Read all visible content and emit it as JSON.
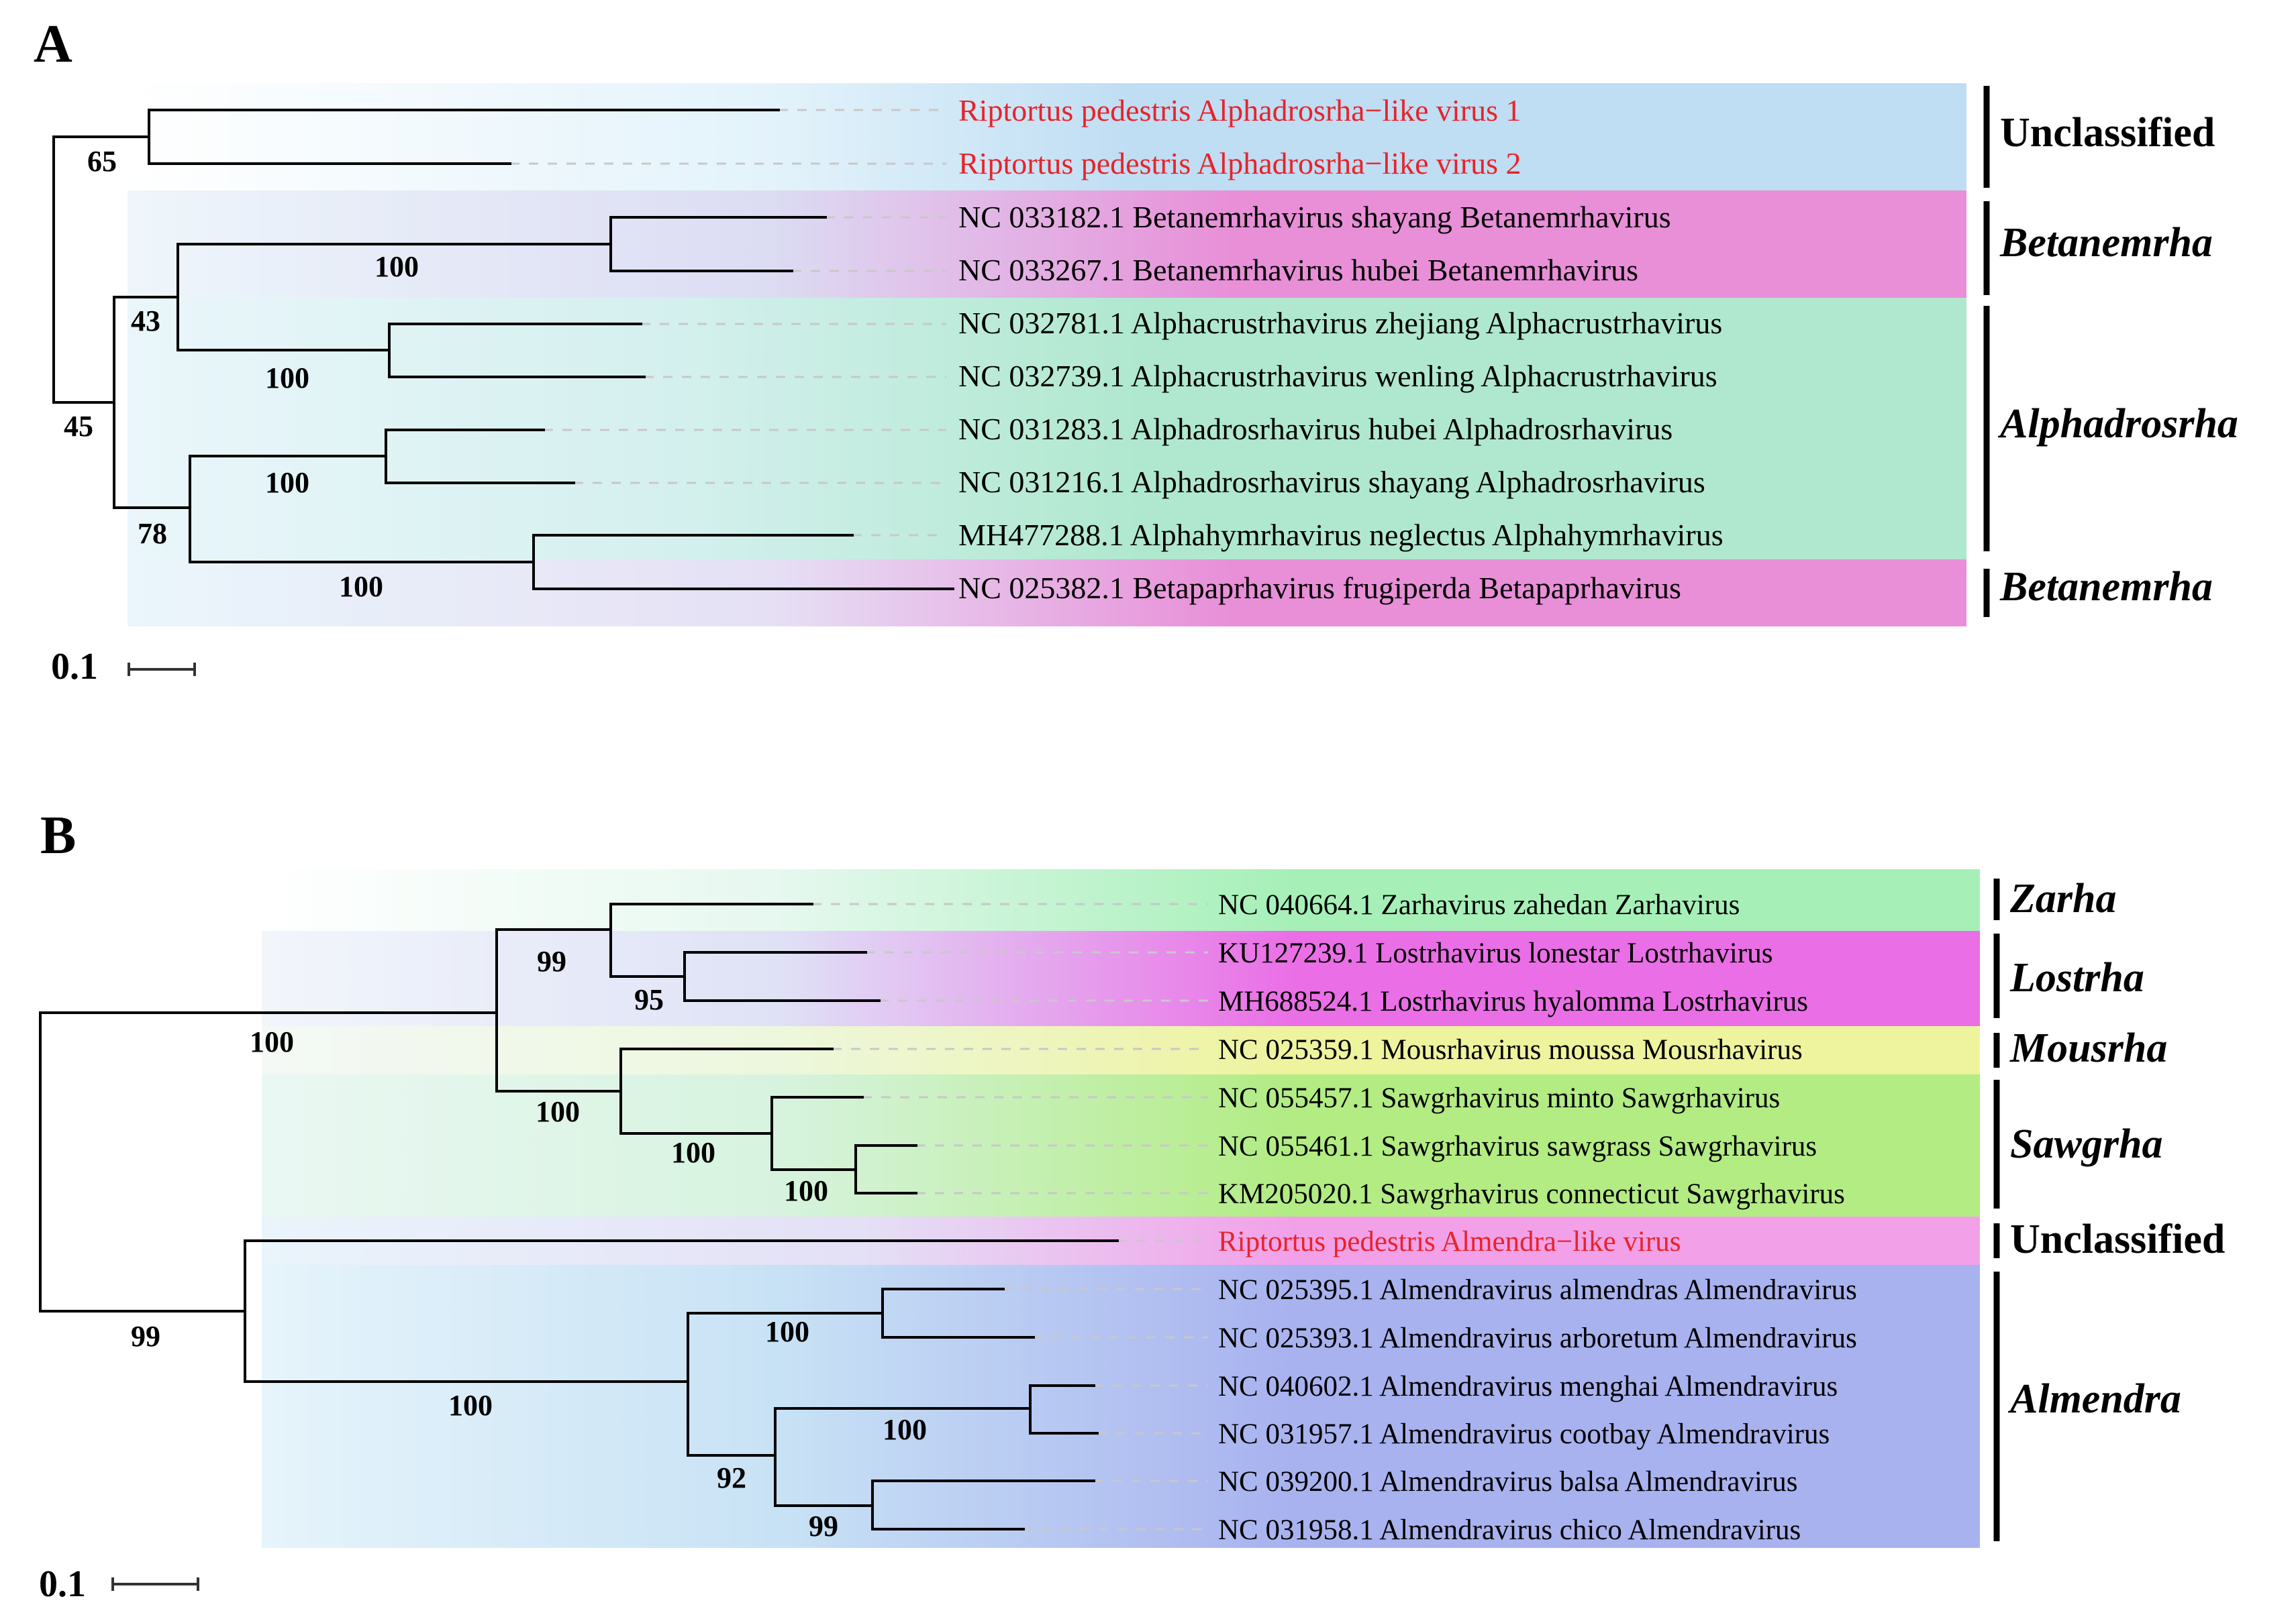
{
  "panel_a": {
    "letter": "A",
    "tips": [
      "Riptortus pedestris Alphadrosrha−like virus 1",
      "Riptortus pedestris Alphadrosrha−like virus 2",
      "NC 033182.1 Betanemrhavirus shayang Betanemrhavirus",
      "NC 033267.1 Betanemrhavirus hubei Betanemrhavirus",
      "NC 032781.1 Alphacrustrhavirus zhejiang Alphacrustrhavirus",
      "NC 032739.1 Alphacrustrhavirus wenling Alphacrustrhavirus",
      "NC 031283.1 Alphadrosrhavirus hubei Alphadrosrhavirus",
      "NC 031216.1 Alphadrosrhavirus shayang Alphadrosrhavirus",
      "MH477288.1 Alphahymrhavirus neglectus Alphahymrhavirus",
      "NC 025382.1 Betapaprhavirus frugiperda Betapaprhavirus"
    ],
    "bootstraps": [
      "65",
      "100",
      "43",
      "100",
      "45",
      "100",
      "78",
      "100"
    ],
    "clades": [
      "Unclassified",
      "Betanemrha",
      "Alphadrosrha",
      "Betanemrha"
    ],
    "scale": "0.1",
    "colors": {
      "unclassified": "#bfddf3",
      "betanemrha": "#e88fd8",
      "alphadrosrha": "#b0e8cf",
      "highlight": "#e8232a"
    }
  },
  "panel_b": {
    "letter": "B",
    "tips": [
      "NC 040664.1 Zarhavirus zahedan Zarhavirus",
      "KU127239.1 Lostrhavirus lonestar Lostrhavirus",
      "MH688524.1 Lostrhavirus hyalomma Lostrhavirus",
      "NC 025359.1 Mousrhavirus moussa Mousrhavirus",
      "NC 055457.1 Sawgrhavirus minto Sawgrhavirus",
      "NC 055461.1 Sawgrhavirus sawgrass Sawgrhavirus",
      "KM205020.1 Sawgrhavirus connecticut Sawgrhavirus",
      "Riptortus pedestris Almendra−like virus",
      "NC 025395.1 Almendravirus almendras Almendravirus",
      "NC 025393.1 Almendravirus arboretum Almendravirus",
      "NC 040602.1 Almendravirus menghai Almendravirus",
      "NC 031957.1 Almendravirus cootbay Almendravirus",
      "NC 039200.1 Almendravirus balsa Almendravirus",
      "NC 031958.1 Almendravirus chico Almendravirus"
    ],
    "bootstraps": [
      "99",
      "95",
      "100",
      "100",
      "100",
      "100",
      "99",
      "100",
      "100",
      "100",
      "92",
      "99"
    ],
    "clades": [
      "Zarha",
      "Lostrha",
      "Mousrha",
      "Sawgrha",
      "Unclassified",
      "Almendra"
    ],
    "scale": "0.1",
    "colors": {
      "zarha": "#a6f0b8",
      "lostrha": "#ea6fe6",
      "mousrha": "#eef39e",
      "sawgrha": "#b2ec83",
      "unclassified": "#f2a1e8",
      "almendra": "#a8b2ef"
    }
  }
}
